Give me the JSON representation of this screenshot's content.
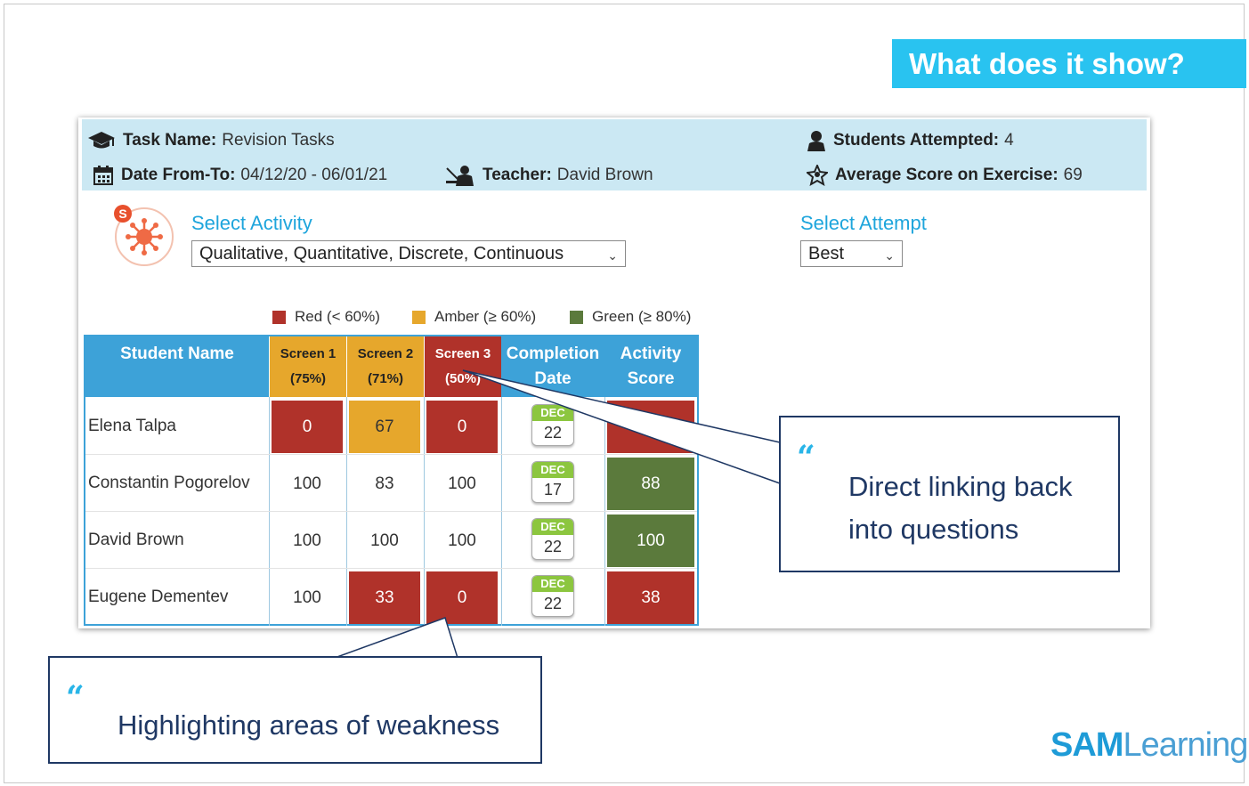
{
  "slide": {
    "title": "What does it show?"
  },
  "info": {
    "task_name_label": "Task Name:",
    "task_name": "Revision Tasks",
    "date_label": "Date From-To:",
    "date_range": "04/12/20 - 06/01/21",
    "teacher_label": "Teacher:",
    "teacher": "David Brown",
    "students_label": "Students Attempted:",
    "students": "4",
    "average_label": "Average Score on Exercise:",
    "average": "69"
  },
  "activity": {
    "badge": "S",
    "label": "Select Activity",
    "value": "Qualitative, Quantitative, Discrete, Continuous"
  },
  "attempt": {
    "label": "Select Attempt",
    "value": "Best"
  },
  "legend": {
    "red": "Red (< 60%)",
    "amber": "Amber (≥ 60%)",
    "green": "Green (≥ 80%)"
  },
  "colors": {
    "red": "#b0322a",
    "amber": "#e6a72c",
    "green": "#5b7a3c",
    "header_blue": "#3da2d8",
    "banner": "#29c3f0",
    "callout_border": "#1f3864"
  },
  "table": {
    "headers": {
      "student_name": "Student Name",
      "screen1_title": "Screen 1",
      "screen1_pct": "(75%)",
      "screen2_title": "Screen 2",
      "screen2_pct": "(71%)",
      "screen3_title": "Screen 3",
      "screen3_pct": "(50%)",
      "completion_line1": "Completion",
      "completion_line2": "Date",
      "activity_line1": "Activity",
      "activity_line2": "Score"
    },
    "rows": [
      {
        "name": "Elena Talpa",
        "s1": "0",
        "s1_status": "red",
        "s2": "67",
        "s2_status": "amber",
        "s3": "0",
        "s3_status": "red",
        "month": "DEC",
        "day": "22",
        "score": "",
        "score_status": "red"
      },
      {
        "name": "Constantin Pogorelov",
        "s1": "100",
        "s1_status": "none",
        "s2": "83",
        "s2_status": "none",
        "s3": "100",
        "s3_status": "none",
        "month": "DEC",
        "day": "17",
        "score": "88",
        "score_status": "green"
      },
      {
        "name": "David Brown",
        "s1": "100",
        "s1_status": "none",
        "s2": "100",
        "s2_status": "none",
        "s3": "100",
        "s3_status": "none",
        "month": "DEC",
        "day": "22",
        "score": "100",
        "score_status": "green"
      },
      {
        "name": "Eugene Dementev",
        "s1": "100",
        "s1_status": "none",
        "s2": "33",
        "s2_status": "red",
        "s3": "0",
        "s3_status": "red",
        "month": "DEC",
        "day": "22",
        "score": "38",
        "score_status": "red"
      }
    ]
  },
  "callouts": {
    "linking_line1": "Direct linking back",
    "linking_line2": "into questions",
    "weakness": "Highlighting areas of weakness",
    "quote_mark": "“"
  },
  "logo": {
    "part1": "SAM",
    "part2": "Learning"
  }
}
